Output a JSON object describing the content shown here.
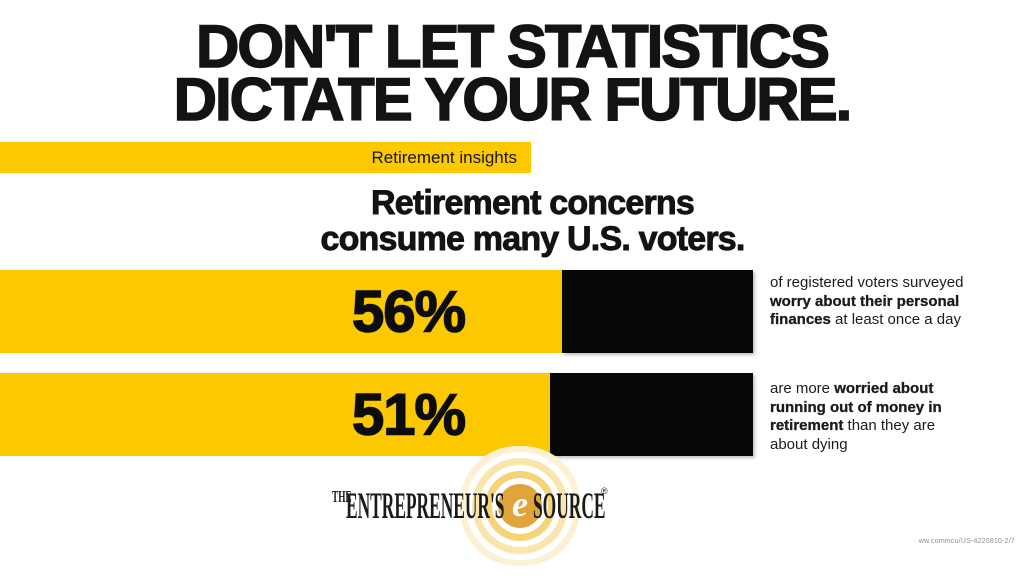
{
  "page": {
    "background": "#ffffff",
    "accent_yellow": "#FCC800",
    "bar_black": "#070707"
  },
  "headline": {
    "line1": "DON'T LET STATISTICS",
    "line2": "DICTATE YOUR FUTURE."
  },
  "tag_bar": {
    "label": "Retirement insights"
  },
  "subheading": {
    "line1": "Retirement concerns",
    "line2": "consume many U.S. voters."
  },
  "chart_data": {
    "type": "bar",
    "orientation": "horizontal",
    "title": "Retirement concerns consume many U.S. voters.",
    "categories": [
      "of registered voters surveyed worry about their personal finances at least once a day",
      "are more worried about running out of money in retirement than they are about dying"
    ],
    "values": [
      56,
      51
    ],
    "unit": "%",
    "bar_color": "#FCC800",
    "bar_secondary_color": "#070707",
    "grid": false,
    "legend": "none"
  },
  "stats": [
    {
      "value": "56%",
      "desc_pre": "of registered voters surveyed ",
      "desc_bold": "worry about their personal finances",
      "desc_post": " at least once a day"
    },
    {
      "value": "51%",
      "desc_pre": "are more ",
      "desc_bold": "worried about running out of money in retirement",
      "desc_post": " than they are about dying"
    }
  ],
  "logo": {
    "the": "THE",
    "word1": "ENTREPRENEUR'S",
    "e": "e",
    "word2": "SOURCE",
    "reg": "®"
  },
  "footer": {
    "code": "ww.commcu/US-4220810-2/7"
  }
}
